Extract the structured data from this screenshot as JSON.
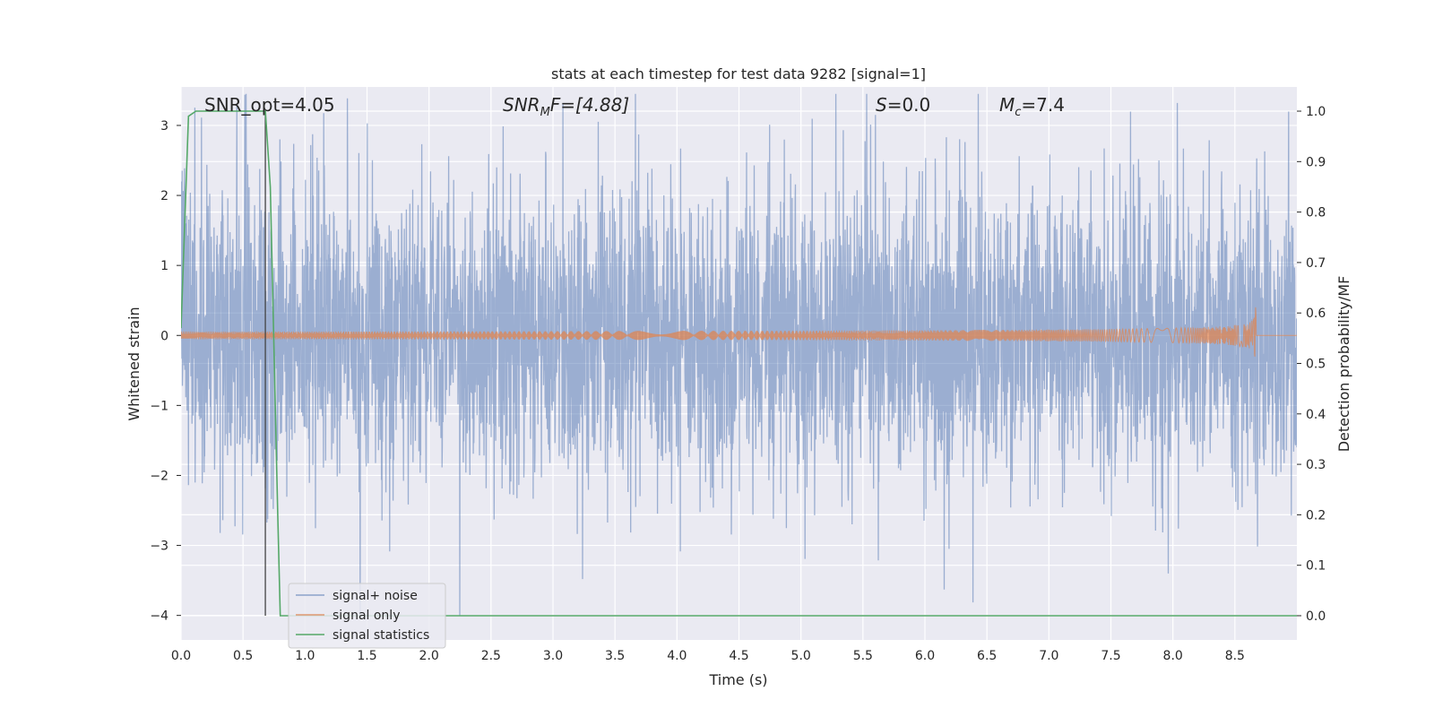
{
  "chart_data": {
    "type": "line",
    "title": "stats at each timestep for test data 9282 [signal=1]",
    "xlabel": "Time (s)",
    "ylabel_left": "Whitened strain",
    "ylabel_right": "Detection probability/MF",
    "xlim": [
      0.0,
      9.0
    ],
    "ylim_left": [
      -4.35,
      3.55
    ],
    "ylim_right": [
      -0.048,
      1.048
    ],
    "x_ticks": [
      "0.0",
      "0.5",
      "1.0",
      "1.5",
      "2.0",
      "2.5",
      "3.0",
      "3.5",
      "4.0",
      "4.5",
      "5.0",
      "5.5",
      "6.0",
      "6.5",
      "7.0",
      "7.5",
      "8.0",
      "8.5"
    ],
    "y_left_ticks": [
      "3",
      "2",
      "1",
      "0",
      "−1",
      "−2",
      "−3",
      "−4"
    ],
    "y_right_ticks": [
      "1.0",
      "0.9",
      "0.8",
      "0.7",
      "0.6",
      "0.5",
      "0.4",
      "0.3",
      "0.2",
      "0.1",
      "0.0"
    ],
    "grid": true,
    "legend_position": "lower-left",
    "series": [
      {
        "name": "signal+ noise",
        "color": "#4c72b0",
        "alpha": 0.5,
        "axis": "left",
        "description_range": [
          -4.0,
          3.45
        ]
      },
      {
        "name": "signal only",
        "color": "#dd8452",
        "axis": "left",
        "chirp_end_time": 8.67,
        "peak_amplitude": 0.45
      },
      {
        "name": "signal statistics",
        "color": "#55a868",
        "axis": "right",
        "x": [
          0.0,
          0.06,
          0.12,
          0.2,
          0.4,
          0.6,
          0.68,
          0.72,
          0.78,
          0.8,
          0.85,
          9.0
        ],
        "y": [
          0.57,
          0.99,
          1.0,
          1.0,
          1.0,
          1.0,
          1.0,
          0.85,
          0.2,
          0.0,
          0.0,
          0.0
        ]
      }
    ],
    "marker_line": {
      "x": 0.68,
      "color": "#444444"
    },
    "annotations": [
      {
        "label": "SNR_opt=4.05"
      },
      {
        "label_main": "SNR",
        "label_sub": "M",
        "label_rest": "F=[4.88]"
      },
      {
        "label_main": "S",
        "label_rest": "=0.0"
      },
      {
        "label_main": "M",
        "label_sub": "c",
        "label_rest": "=7.4"
      }
    ]
  }
}
